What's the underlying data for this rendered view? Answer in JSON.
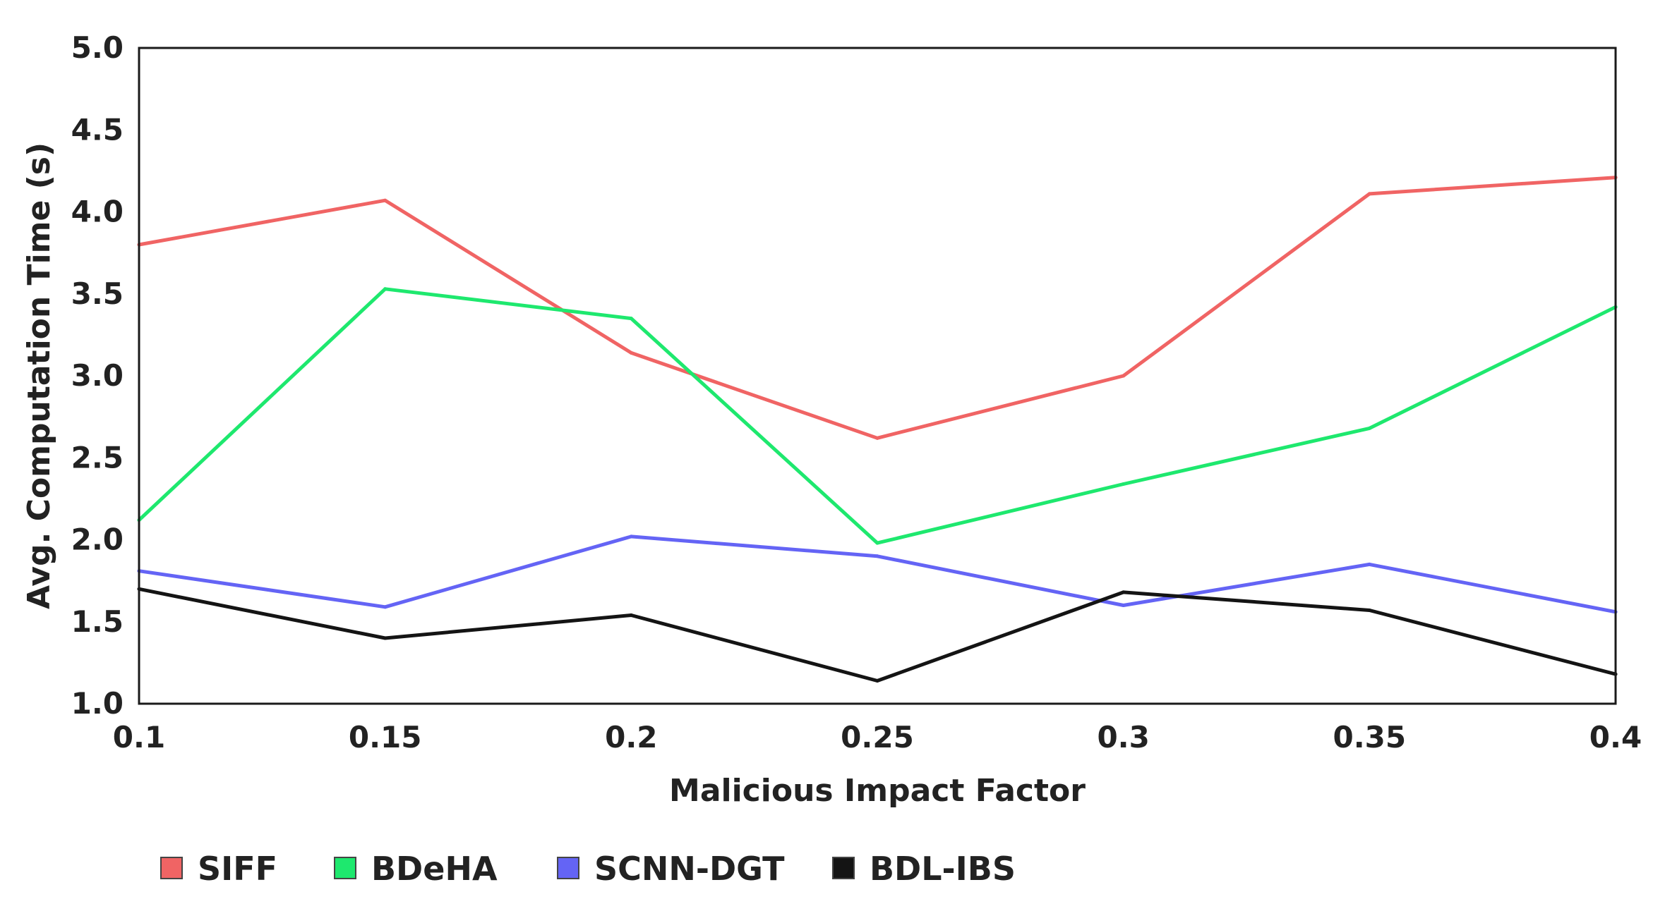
{
  "chart_data": {
    "type": "line",
    "title": "",
    "xlabel": "Malicious Impact Factor",
    "ylabel": "Avg. Computation Time (s)",
    "x": [
      0.1,
      0.15,
      0.2,
      0.25,
      0.3,
      0.35,
      0.4
    ],
    "x_tick_labels": [
      "0.1",
      "0.15",
      "0.2",
      "0.25",
      "0.3",
      "0.35",
      "0.4"
    ],
    "xlim": [
      0.1,
      0.4
    ],
    "ylim": [
      1.0,
      5.0
    ],
    "y_tick_labels": [
      "1.0",
      "1.5",
      "2.0",
      "2.5",
      "3.0",
      "3.5",
      "4.0",
      "4.5",
      "5.0"
    ],
    "grid": false,
    "legend_position": "bottom",
    "series": [
      {
        "name": "SIFF",
        "color": "#f06464",
        "values": [
          3.8,
          4.07,
          3.14,
          2.62,
          3.0,
          4.11,
          4.21
        ]
      },
      {
        "name": "BDeHA",
        "color": "#1ee86e",
        "values": [
          2.12,
          3.53,
          3.35,
          1.98,
          2.34,
          2.68,
          3.42
        ]
      },
      {
        "name": "SCNN-DGT",
        "color": "#6464f5",
        "values": [
          1.81,
          1.59,
          2.02,
          1.9,
          1.6,
          1.85,
          1.56
        ]
      },
      {
        "name": "BDL-IBS",
        "color": "#141414",
        "values": [
          1.7,
          1.4,
          1.54,
          1.14,
          1.68,
          1.57,
          1.18
        ]
      }
    ]
  }
}
